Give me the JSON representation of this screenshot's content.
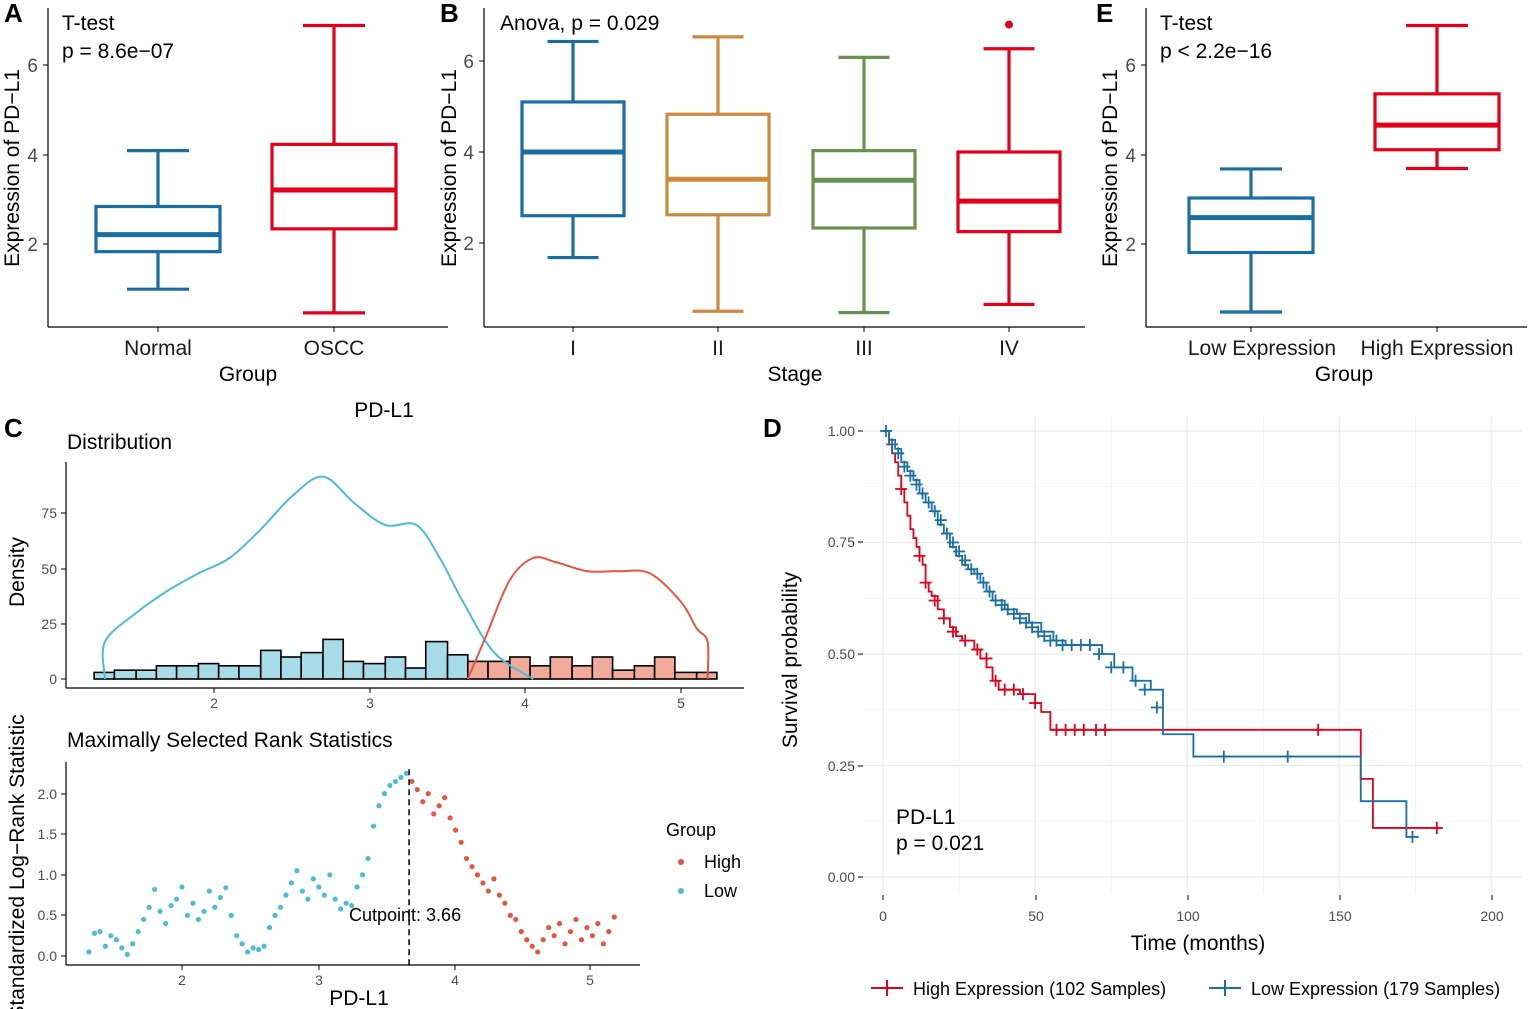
{
  "colors": {
    "normal": "#1a6fa2",
    "oscc": "#e3001b",
    "stage": [
      "#1a6fa2",
      "#cc8a3c",
      "#6b9151",
      "#e3001b"
    ],
    "low": "#4fbcd6",
    "high": "#e8553e",
    "hist_low": "#a8dbe8",
    "hist_high": "#f1a99a",
    "km_high": "#e3001b",
    "km_low": "#1a6fa2"
  },
  "panel_A": {
    "letter": "A",
    "test": "T-test",
    "pvalue": "p = 8.6e−07",
    "ylabel": "Expression of PD−L1",
    "xlabel": "Group",
    "yticks": [
      "2",
      "4",
      "6"
    ]
  },
  "panel_B": {
    "letter": "B",
    "test": "Anova, p = 0.029",
    "ylabel": "Expression of PD−L1",
    "xlabel": "Stage",
    "yticks": [
      "2",
      "4",
      "6"
    ]
  },
  "panel_E": {
    "letter": "E",
    "test": "T-test",
    "pvalue": "p < 2.2e−16",
    "ylabel": "Expression of PD−L1",
    "xlabel": "Group",
    "yticks": [
      "2",
      "4",
      "6"
    ]
  },
  "panel_C": {
    "letter": "C",
    "title": "PD-L1",
    "dist_title": "Distribution",
    "dist_ylabel": "Density",
    "dist_yticks": [
      "0",
      "25",
      "50",
      "75"
    ],
    "dist_xticks": [
      "2",
      "3",
      "4",
      "5"
    ],
    "msr_title": "Maximally Selected Rank Statistics",
    "msr_ylabel": "Standardized Log−Rank Statistic",
    "msr_xlabel": "PD-L1",
    "msr_yticks": [
      "0.0",
      "0.5",
      "1.0",
      "1.5",
      "2.0"
    ],
    "msr_xticks": [
      "2",
      "3",
      "4",
      "5"
    ],
    "cutpoint_label": "Cutpoint: 3.66",
    "legend_title": "Group",
    "legend_high": "High",
    "legend_low": "Low"
  },
  "panel_D": {
    "letter": "D",
    "ylabel": "Survival probability",
    "xlabel": "Time (months)",
    "yticks": [
      "0.00",
      "0.25",
      "0.50",
      "0.75",
      "1.00"
    ],
    "xticks": [
      "0",
      "50",
      "100",
      "150",
      "200"
    ],
    "annot_name": "PD-L1",
    "annot_p": "p = 0.021",
    "legend_high": "High Expression (102 Samples)",
    "legend_low": "Low Expression (179 Samples)"
  },
  "chart_data": [
    {
      "type": "box",
      "id": "A",
      "title": "T-test, p = 8.6e−07",
      "xlabel": "Group",
      "ylabel": "Expression of PD−L1",
      "ylim": [
        0.0,
        7.2
      ],
      "categories": [
        "Normal",
        "OSCC"
      ],
      "boxes": [
        {
          "name": "Normal",
          "min": 0.98,
          "q1": 1.82,
          "median": 2.2,
          "q3": 2.83,
          "max": 4.08,
          "outliers": []
        },
        {
          "name": "OSCC",
          "min": 0.45,
          "q1": 2.33,
          "median": 3.2,
          "q3": 4.22,
          "max": 6.88,
          "outliers": []
        }
      ]
    },
    {
      "type": "box",
      "id": "B",
      "title": "Anova, p = 0.029",
      "xlabel": "Stage",
      "ylabel": "Expression of PD−L1",
      "ylim": [
        0.0,
        7.2
      ],
      "categories": [
        "I",
        "II",
        "III",
        "IV"
      ],
      "boxes": [
        {
          "name": "I",
          "min": 1.68,
          "q1": 2.6,
          "median": 4.0,
          "q3": 5.1,
          "max": 6.43,
          "outliers": []
        },
        {
          "name": "II",
          "min": 0.5,
          "q1": 2.62,
          "median": 3.4,
          "q3": 4.83,
          "max": 6.53,
          "outliers": []
        },
        {
          "name": "III",
          "min": 0.47,
          "q1": 2.33,
          "median": 3.38,
          "q3": 4.03,
          "max": 6.08,
          "outliers": []
        },
        {
          "name": "IV",
          "min": 0.65,
          "q1": 2.25,
          "median": 2.92,
          "q3": 4.0,
          "max": 6.27,
          "outliers": [
            6.8
          ]
        }
      ]
    },
    {
      "type": "box",
      "id": "E",
      "title": "T-test, p < 2.2e−16",
      "xlabel": "Group",
      "ylabel": "Expression of PD−L1",
      "ylim": [
        0.0,
        7.2
      ],
      "categories": [
        "Low Expression",
        "High Expression"
      ],
      "boxes": [
        {
          "name": "Low Expression",
          "min": 0.47,
          "q1": 1.8,
          "median": 2.58,
          "q3": 3.02,
          "max": 3.67,
          "outliers": []
        },
        {
          "name": "High Expression",
          "min": 3.68,
          "q1": 4.1,
          "median": 4.65,
          "q3": 5.35,
          "max": 6.88,
          "outliers": []
        }
      ]
    },
    {
      "type": "histogram+density",
      "id": "C-distribution",
      "title": "Distribution",
      "xlabel": "",
      "ylabel": "Density",
      "xlim": [
        1.3,
        5.2
      ],
      "ylim": [
        0,
        95
      ],
      "bins": [
        {
          "x0": 1.23,
          "x1": 1.36,
          "count": 3,
          "group": "Low"
        },
        {
          "x0": 1.36,
          "x1": 1.5,
          "count": 4,
          "group": "Low"
        },
        {
          "x0": 1.5,
          "x1": 1.63,
          "count": 4,
          "group": "Low"
        },
        {
          "x0": 1.63,
          "x1": 1.76,
          "count": 6,
          "group": "Low"
        },
        {
          "x0": 1.76,
          "x1": 1.9,
          "count": 6,
          "group": "Low"
        },
        {
          "x0": 1.9,
          "x1": 2.03,
          "count": 7,
          "group": "Low"
        },
        {
          "x0": 2.03,
          "x1": 2.16,
          "count": 6,
          "group": "Low"
        },
        {
          "x0": 2.16,
          "x1": 2.3,
          "count": 6,
          "group": "Low"
        },
        {
          "x0": 2.3,
          "x1": 2.43,
          "count": 13,
          "group": "Low"
        },
        {
          "x0": 2.43,
          "x1": 2.56,
          "count": 10,
          "group": "Low"
        },
        {
          "x0": 2.56,
          "x1": 2.7,
          "count": 12,
          "group": "Low"
        },
        {
          "x0": 2.7,
          "x1": 2.83,
          "count": 18,
          "group": "Low"
        },
        {
          "x0": 2.83,
          "x1": 2.96,
          "count": 8,
          "group": "Low"
        },
        {
          "x0": 2.96,
          "x1": 3.1,
          "count": 7,
          "group": "Low"
        },
        {
          "x0": 3.1,
          "x1": 3.23,
          "count": 10,
          "group": "Low"
        },
        {
          "x0": 3.23,
          "x1": 3.36,
          "count": 5,
          "group": "Low"
        },
        {
          "x0": 3.36,
          "x1": 3.5,
          "count": 17,
          "group": "Low"
        },
        {
          "x0": 3.5,
          "x1": 3.63,
          "count": 11,
          "group": "Low"
        },
        {
          "x0": 3.63,
          "x1": 3.76,
          "count": 8,
          "group": "High"
        },
        {
          "x0": 3.76,
          "x1": 3.9,
          "count": 8,
          "group": "High"
        },
        {
          "x0": 3.9,
          "x1": 4.03,
          "count": 10,
          "group": "High"
        },
        {
          "x0": 4.03,
          "x1": 4.16,
          "count": 6,
          "group": "High"
        },
        {
          "x0": 4.16,
          "x1": 4.3,
          "count": 10,
          "group": "High"
        },
        {
          "x0": 4.3,
          "x1": 4.43,
          "count": 6,
          "group": "High"
        },
        {
          "x0": 4.43,
          "x1": 4.56,
          "count": 10,
          "group": "High"
        },
        {
          "x0": 4.56,
          "x1": 4.7,
          "count": 4,
          "group": "High"
        },
        {
          "x0": 4.7,
          "x1": 4.83,
          "count": 6,
          "group": "High"
        },
        {
          "x0": 4.83,
          "x1": 4.96,
          "count": 10,
          "group": "High"
        },
        {
          "x0": 4.96,
          "x1": 5.1,
          "count": 3,
          "group": "High"
        },
        {
          "x0": 5.1,
          "x1": 5.23,
          "count": 3,
          "group": "High"
        }
      ],
      "density_low": {
        "x": [
          1.3,
          1.5,
          1.7,
          1.9,
          2.1,
          2.3,
          2.5,
          2.7,
          2.9,
          3.1,
          3.3,
          3.45,
          3.6,
          3.8,
          4.05
        ],
        "y": [
          17,
          30,
          40,
          48,
          55,
          68,
          83,
          92,
          80,
          70,
          70,
          55,
          35,
          12,
          0
        ]
      },
      "density_high": {
        "x": [
          3.63,
          3.75,
          3.9,
          4.05,
          4.2,
          4.4,
          4.6,
          4.8,
          5.0,
          5.1,
          5.17
        ],
        "y": [
          0,
          20,
          45,
          55,
          53,
          49,
          49,
          48,
          35,
          23,
          17
        ]
      }
    },
    {
      "type": "scatter",
      "id": "C-msr",
      "title": "Maximally Selected Rank Statistics",
      "xlabel": "PD-L1",
      "ylabel": "Standardized Log−Rank Statistic",
      "xlim": [
        1.3,
        5.2
      ],
      "ylim": [
        -0.1,
        2.3
      ],
      "cutpoint": 3.66,
      "series": [
        {
          "name": "Low",
          "x": [
            1.32,
            1.36,
            1.4,
            1.44,
            1.48,
            1.52,
            1.56,
            1.6,
            1.64,
            1.68,
            1.72,
            1.76,
            1.8,
            1.84,
            1.88,
            1.92,
            1.96,
            2.0,
            2.04,
            2.08,
            2.12,
            2.16,
            2.2,
            2.24,
            2.28,
            2.32,
            2.36,
            2.4,
            2.44,
            2.48,
            2.52,
            2.56,
            2.6,
            2.64,
            2.68,
            2.72,
            2.76,
            2.8,
            2.84,
            2.88,
            2.92,
            2.96,
            3.0,
            3.04,
            3.08,
            3.12,
            3.16,
            3.2,
            3.24,
            3.28,
            3.32,
            3.36,
            3.4,
            3.44,
            3.48,
            3.52,
            3.56,
            3.6,
            3.64
          ],
          "y": [
            0.05,
            0.28,
            0.3,
            0.12,
            0.25,
            0.2,
            0.1,
            0.02,
            0.15,
            0.3,
            0.45,
            0.6,
            0.82,
            0.55,
            0.4,
            0.62,
            0.7,
            0.85,
            0.5,
            0.65,
            0.45,
            0.55,
            0.8,
            0.6,
            0.72,
            0.84,
            0.5,
            0.25,
            0.15,
            0.05,
            0.1,
            0.08,
            0.12,
            0.35,
            0.5,
            0.6,
            0.75,
            0.9,
            1.05,
            0.8,
            0.7,
            0.95,
            0.85,
            0.75,
            1.0,
            0.7,
            0.58,
            0.65,
            0.62,
            0.85,
            1.0,
            1.2,
            1.6,
            1.85,
            2.0,
            2.1,
            2.15,
            2.2,
            2.25
          ]
        },
        {
          "name": "High",
          "x": [
            3.68,
            3.72,
            3.76,
            3.8,
            3.84,
            3.88,
            3.92,
            3.96,
            4.0,
            4.04,
            4.08,
            4.12,
            4.16,
            4.2,
            4.24,
            4.28,
            4.32,
            4.36,
            4.4,
            4.44,
            4.48,
            4.52,
            4.56,
            4.6,
            4.64,
            4.68,
            4.72,
            4.76,
            4.8,
            4.84,
            4.88,
            4.92,
            4.96,
            5.0,
            5.04,
            5.08,
            5.12,
            5.16
          ],
          "y": [
            2.15,
            2.05,
            1.9,
            2.0,
            1.75,
            1.85,
            1.95,
            1.7,
            1.55,
            1.4,
            1.2,
            1.1,
            1.0,
            0.9,
            0.8,
            0.95,
            0.75,
            0.65,
            0.5,
            0.45,
            0.3,
            0.2,
            0.12,
            0.05,
            0.2,
            0.35,
            0.25,
            0.4,
            0.15,
            0.3,
            0.45,
            0.2,
            0.35,
            0.25,
            0.4,
            0.15,
            0.3,
            0.48
          ]
        }
      ]
    },
    {
      "type": "km-survival",
      "id": "D",
      "title": "PD-L1, p = 0.021",
      "xlabel": "Time (months)",
      "ylabel": "Survival probability",
      "xlim": [
        0,
        210
      ],
      "ylim": [
        0,
        1
      ],
      "series": [
        {
          "name": "High Expression (102 Samples)",
          "times": [
            0,
            2,
            3,
            4,
            5,
            6,
            7,
            8,
            9,
            10,
            11,
            12,
            13,
            14,
            15,
            16,
            18,
            20,
            22,
            24,
            26,
            28,
            30,
            32,
            34,
            36,
            38,
            40,
            45,
            50,
            52,
            55,
            60,
            80,
            100,
            143,
            157,
            161,
            183
          ],
          "surv": [
            1.0,
            0.97,
            0.95,
            0.93,
            0.9,
            0.87,
            0.84,
            0.81,
            0.78,
            0.76,
            0.74,
            0.72,
            0.7,
            0.66,
            0.64,
            0.63,
            0.6,
            0.58,
            0.56,
            0.54,
            0.53,
            0.53,
            0.51,
            0.49,
            0.47,
            0.44,
            0.42,
            0.42,
            0.41,
            0.39,
            0.37,
            0.33,
            0.33,
            0.33,
            0.33,
            0.33,
            0.22,
            0.11,
            0.11
          ],
          "censor_times": [
            6,
            12,
            14,
            17,
            20,
            23,
            27,
            31,
            34,
            37,
            40,
            43,
            46,
            50,
            57,
            60,
            63,
            66,
            70,
            73,
            143,
            182
          ],
          "censor_surv": [
            0.87,
            0.72,
            0.66,
            0.62,
            0.58,
            0.55,
            0.53,
            0.51,
            0.49,
            0.44,
            0.42,
            0.42,
            0.41,
            0.39,
            0.33,
            0.33,
            0.33,
            0.33,
            0.33,
            0.33,
            0.33,
            0.11
          ]
        },
        {
          "name": "Low Expression (179 Samples)",
          "times": [
            0,
            2,
            4,
            6,
            8,
            10,
            12,
            14,
            16,
            18,
            20,
            22,
            24,
            26,
            28,
            30,
            32,
            34,
            36,
            40,
            44,
            48,
            52,
            56,
            60,
            66,
            72,
            76,
            82,
            88,
            92,
            102,
            112,
            133,
            157,
            172,
            176
          ],
          "surv": [
            1.0,
            0.98,
            0.96,
            0.93,
            0.91,
            0.89,
            0.86,
            0.84,
            0.82,
            0.79,
            0.77,
            0.74,
            0.72,
            0.7,
            0.69,
            0.68,
            0.66,
            0.64,
            0.62,
            0.6,
            0.59,
            0.57,
            0.55,
            0.53,
            0.52,
            0.52,
            0.5,
            0.47,
            0.44,
            0.42,
            0.32,
            0.27,
            0.27,
            0.27,
            0.17,
            0.09,
            0.09
          ],
          "censor_times": [
            1,
            3,
            5,
            7,
            9,
            11,
            13,
            15,
            17,
            19,
            21,
            23,
            25,
            27,
            29,
            31,
            33,
            35,
            37,
            39,
            41,
            43,
            45,
            47,
            49,
            51,
            53,
            55,
            57,
            59,
            62,
            65,
            68,
            71,
            75,
            79,
            83,
            86,
            90,
            112,
            133,
            174
          ],
          "censor_surv": [
            1.0,
            0.97,
            0.95,
            0.92,
            0.9,
            0.88,
            0.86,
            0.84,
            0.82,
            0.8,
            0.77,
            0.75,
            0.73,
            0.71,
            0.69,
            0.68,
            0.66,
            0.64,
            0.62,
            0.61,
            0.6,
            0.59,
            0.58,
            0.57,
            0.56,
            0.55,
            0.54,
            0.53,
            0.53,
            0.52,
            0.52,
            0.52,
            0.52,
            0.5,
            0.47,
            0.47,
            0.44,
            0.42,
            0.38,
            0.27,
            0.27,
            0.09
          ]
        }
      ]
    }
  ]
}
